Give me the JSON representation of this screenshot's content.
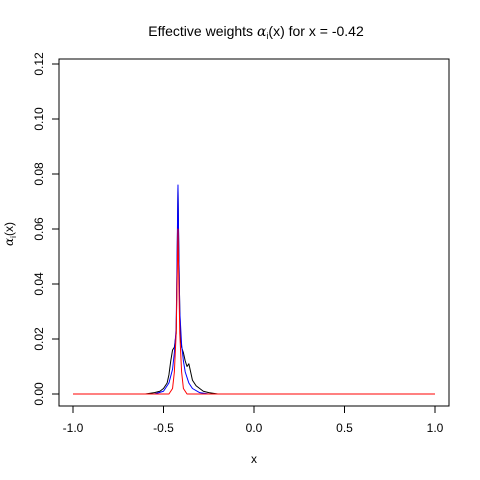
{
  "chart_data": {
    "type": "line",
    "title": "Effective weights α_i(x) for x = -0.42",
    "title_prefix": "Effective weights ",
    "title_symbol": "α",
    "title_subscript": "i",
    "title_suffix": "(x) for x = -0.42",
    "xlabel": "x",
    "ylabel_symbol": "α",
    "ylabel_subscript": "i",
    "ylabel_suffix": "(x)",
    "xlim": [
      -1.0,
      1.0
    ],
    "ylim": [
      0.0,
      0.12
    ],
    "xticks": [
      -1.0,
      -0.5,
      0.0,
      0.5,
      1.0
    ],
    "xtick_labels": [
      "-1.0",
      "-0.5",
      "0.0",
      "0.5",
      "1.0"
    ],
    "yticks": [
      0.0,
      0.02,
      0.04,
      0.06,
      0.08,
      0.1,
      0.12
    ],
    "ytick_labels": [
      "0.00",
      "0.02",
      "0.04",
      "0.06",
      "0.08",
      "0.10",
      "0.12"
    ],
    "grid": false,
    "legend": "none",
    "series": [
      {
        "color": "#000000",
        "x": [
          -1.0,
          -0.6,
          -0.55,
          -0.52,
          -0.5,
          -0.48,
          -0.47,
          -0.46,
          -0.45,
          -0.44,
          -0.43,
          -0.425,
          -0.42,
          -0.415,
          -0.41,
          -0.405,
          -0.4,
          -0.39,
          -0.38,
          -0.37,
          -0.36,
          -0.35,
          -0.34,
          -0.32,
          -0.3,
          -0.28,
          -0.25,
          -0.2,
          1.0
        ],
        "y": [
          0.0,
          0.0,
          0.0005,
          0.001,
          0.002,
          0.004,
          0.007,
          0.012,
          0.016,
          0.017,
          0.022,
          0.045,
          0.075,
          0.05,
          0.03,
          0.02,
          0.017,
          0.015,
          0.012,
          0.01,
          0.011,
          0.008,
          0.005,
          0.003,
          0.002,
          0.001,
          0.0005,
          0.0,
          0.0
        ]
      },
      {
        "color": "#0000ff",
        "x": [
          -1.0,
          -0.55,
          -0.5,
          -0.47,
          -0.45,
          -0.44,
          -0.43,
          -0.425,
          -0.42,
          -0.415,
          -0.41,
          -0.4,
          -0.39,
          -0.38,
          -0.36,
          -0.34,
          -0.3,
          -0.25,
          1.0
        ],
        "y": [
          0.0,
          0.0,
          0.001,
          0.004,
          0.009,
          0.015,
          0.024,
          0.05,
          0.076,
          0.05,
          0.03,
          0.018,
          0.012,
          0.008,
          0.004,
          0.002,
          0.0005,
          0.0,
          0.0
        ]
      },
      {
        "color": "#ff0000",
        "x": [
          -1.0,
          -0.47,
          -0.45,
          -0.44,
          -0.43,
          -0.425,
          -0.42,
          -0.415,
          -0.41,
          -0.4,
          -0.39,
          -0.37,
          1.0
        ],
        "y": [
          0.0,
          0.0,
          0.002,
          0.008,
          0.022,
          0.04,
          0.06,
          0.04,
          0.022,
          0.008,
          0.002,
          0.0,
          0.0
        ]
      }
    ]
  }
}
